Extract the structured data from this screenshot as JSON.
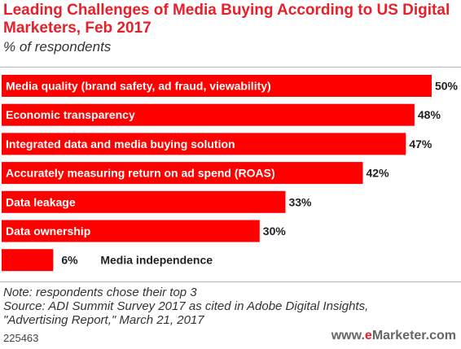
{
  "title": "Leading Challenges of Media Buying According to US Digital Marketers, Feb 2017",
  "subtitle": "% of respondents",
  "chart_data": {
    "type": "bar",
    "orientation": "horizontal",
    "categories": [
      "Media quality (brand safety, ad fraud, viewability)",
      "Economic transparency",
      "Integrated data and media buying solution",
      "Accurately measuring return on ad spend (ROAS)",
      "Data leakage",
      "Data ownership",
      "Media independence"
    ],
    "values": [
      50,
      48,
      47,
      42,
      33,
      30,
      6
    ],
    "value_labels": [
      "50%",
      "48%",
      "47%",
      "42%",
      "33%",
      "30%",
      "6%"
    ],
    "bar_color": "#ff0000",
    "xlim": [
      0,
      50
    ],
    "grid": false,
    "legend": "none"
  },
  "notes": {
    "note": "Note: respondents chose their top 3",
    "source_line1": "Source: ADI Summit Survey 2017 as cited in Adobe Digital Insights,",
    "source_line2": "\"Advertising Report,\" March 21, 2017"
  },
  "chart_id": "225463",
  "brand": {
    "prefix": "www.",
    "accent": "e",
    "name": "Marketer",
    "suffix": ".com"
  }
}
